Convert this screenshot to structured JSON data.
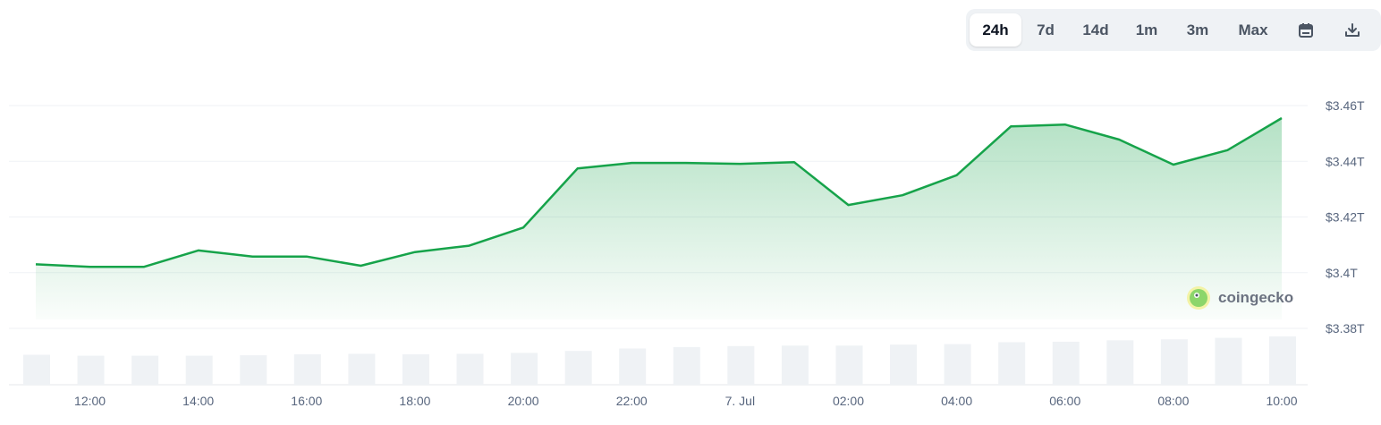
{
  "toolbar": {
    "ranges": [
      {
        "label": "24h",
        "active": true
      },
      {
        "label": "7d",
        "active": false
      },
      {
        "label": "14d",
        "active": false
      },
      {
        "label": "1m",
        "active": false
      },
      {
        "label": "3m",
        "active": false
      },
      {
        "label": "Max",
        "active": false
      }
    ],
    "calendar_icon": "calendar-icon",
    "download_icon": "download-icon"
  },
  "brand": {
    "name": "coingecko",
    "logo_icon": "coingecko-logo-icon"
  },
  "colors": {
    "line": "#16a34a",
    "area_top": "#bfe9cc",
    "volume": "#eff2f5",
    "grid": "#eff2f5"
  },
  "chart_data": {
    "type": "area",
    "x_labels": [
      "12:00",
      "14:00",
      "16:00",
      "18:00",
      "20:00",
      "22:00",
      "7. Jul",
      "02:00",
      "04:00",
      "06:00",
      "08:00",
      "10:00"
    ],
    "y_ticks": [
      "$3.38T",
      "$3.4T",
      "$3.42T",
      "$3.44T",
      "$3.46T"
    ],
    "ylim": [
      3.38,
      3.46
    ],
    "market_cap_t": [
      3.403,
      3.4021,
      3.4021,
      3.408,
      3.4058,
      3.4058,
      3.4025,
      3.4074,
      3.4097,
      3.4162,
      3.4374,
      3.4394,
      3.4394,
      3.4391,
      3.4397,
      3.4243,
      3.4278,
      3.435,
      3.4525,
      3.4532,
      3.4478,
      3.4388,
      3.444,
      3.4555
    ],
    "volume_relative": [
      0.62,
      0.6,
      0.6,
      0.6,
      0.61,
      0.63,
      0.64,
      0.63,
      0.64,
      0.66,
      0.7,
      0.75,
      0.78,
      0.8,
      0.81,
      0.81,
      0.83,
      0.84,
      0.88,
      0.89,
      0.92,
      0.94,
      0.97,
      1.0
    ]
  }
}
